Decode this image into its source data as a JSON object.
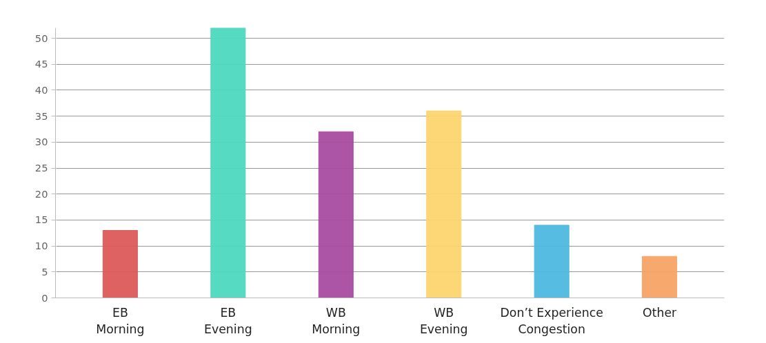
{
  "chart_data": {
    "type": "bar",
    "categories": [
      "EB\nMorning",
      "EB\nEvening",
      "WB\nMorning",
      "WB\nEvening",
      "Don’t Experience\nCongestion",
      "Other"
    ],
    "values": [
      13,
      52,
      32,
      36,
      14,
      8
    ],
    "colors": [
      "#dc5a5a",
      "#4dd9bf",
      "#a84ba0",
      "#fdd46f",
      "#4db8e0",
      "#f7a365"
    ],
    "ylim": [
      0,
      52
    ],
    "yticks": [
      0,
      5,
      10,
      15,
      20,
      25,
      30,
      35,
      40,
      45,
      50
    ],
    "grid": "y"
  }
}
